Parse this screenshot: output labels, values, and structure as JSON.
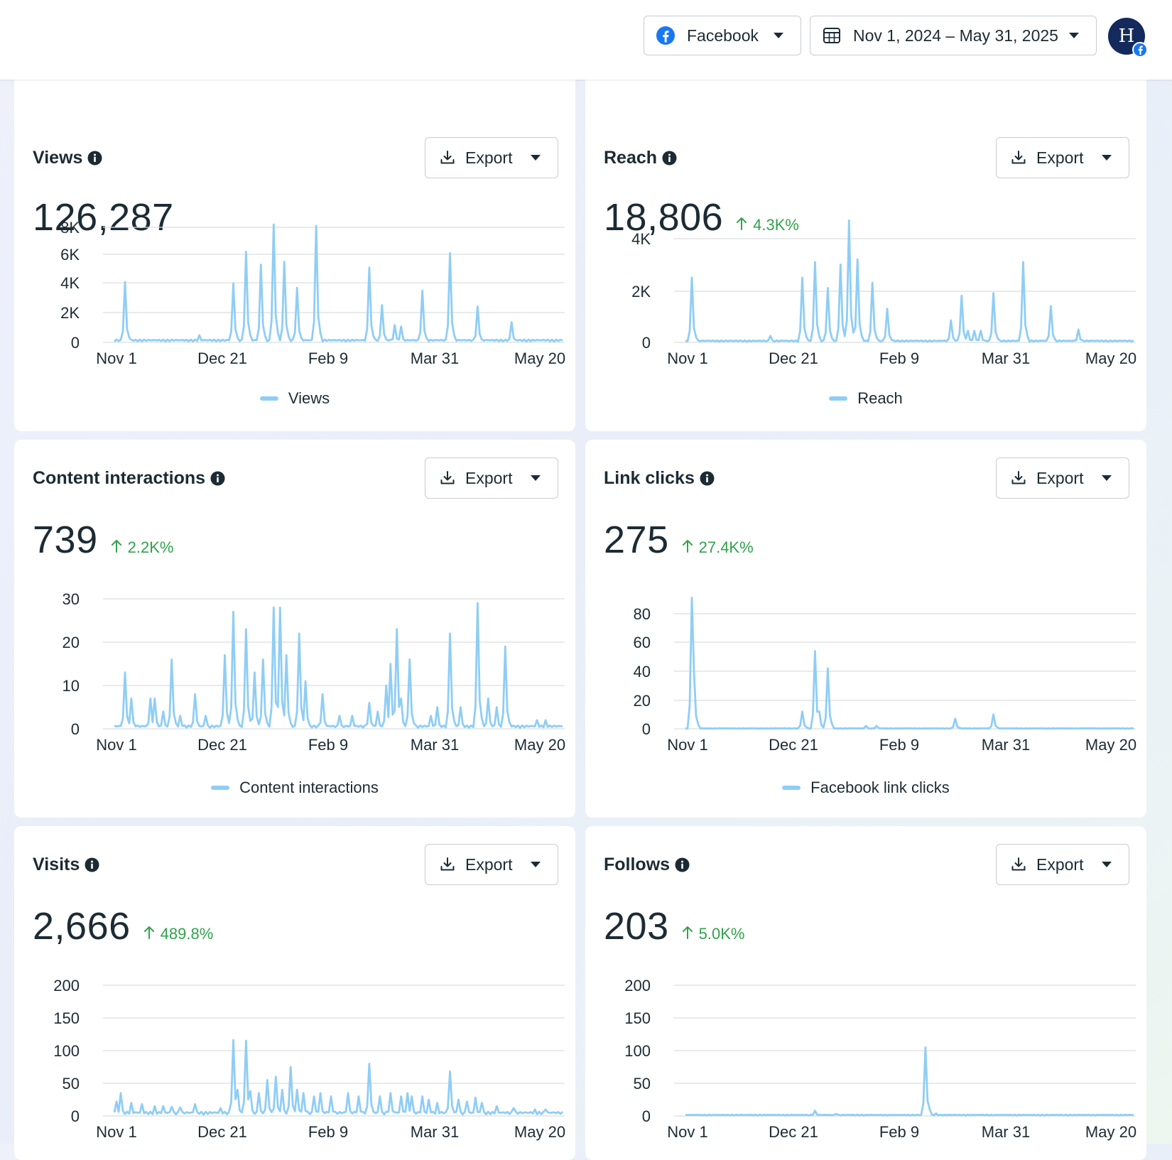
{
  "header": {
    "platform_label": "Facebook",
    "date_range": "Nov 1, 2024 – May 31, 2025",
    "avatar_initial": "H"
  },
  "colors": {
    "line": "#8fcdf5",
    "grid": "#dadde1",
    "positive": "#31a24c",
    "brand": "#1877f2"
  },
  "cards": [
    {
      "title": "Views",
      "export_label": "Export",
      "value": "126,287",
      "change": "",
      "legend": "Views",
      "chart_data": {
        "type": "line",
        "x_ticks": [
          "Nov 1",
          "Dec 21",
          "Feb 9",
          "Mar 31",
          "May 20"
        ],
        "y_ticks": [
          "8K",
          "6K",
          "4K",
          "2K",
          "0"
        ],
        "ylim": [
          0,
          8000
        ],
        "peaks": [
          [
            5,
            4200
          ],
          [
            40,
            500
          ],
          [
            56,
            4100
          ],
          [
            62,
            6300
          ],
          [
            69,
            5400
          ],
          [
            75,
            8200
          ],
          [
            80,
            5600
          ],
          [
            86,
            3800
          ],
          [
            95,
            8100
          ],
          [
            120,
            5200
          ],
          [
            126,
            2600
          ],
          [
            132,
            1200
          ],
          [
            135,
            1100
          ],
          [
            145,
            3600
          ],
          [
            158,
            6200
          ],
          [
            171,
            2500
          ],
          [
            187,
            1400
          ]
        ],
        "baseline": 150
      }
    },
    {
      "title": "Reach",
      "export_label": "Export",
      "value": "18,806",
      "change": "4.3K%",
      "legend": "Reach",
      "chart_data": {
        "type": "line",
        "x_ticks": [
          "Nov 1",
          "Dec 21",
          "Feb 9",
          "Mar 31",
          "May 20"
        ],
        "y_ticks": [
          "4K",
          "2K",
          "0"
        ],
        "ylim": [
          0,
          4600
        ],
        "peaks": [
          [
            3,
            2500
          ],
          [
            40,
            250
          ],
          [
            55,
            2500
          ],
          [
            61,
            3100
          ],
          [
            67,
            2100
          ],
          [
            73,
            3000
          ],
          [
            77,
            4700
          ],
          [
            81,
            3200
          ],
          [
            88,
            2300
          ],
          [
            95,
            1300
          ],
          [
            125,
            850
          ],
          [
            130,
            1800
          ],
          [
            133,
            450
          ],
          [
            136,
            450
          ],
          [
            139,
            450
          ],
          [
            145,
            1900
          ],
          [
            159,
            3100
          ],
          [
            172,
            1400
          ],
          [
            185,
            500
          ]
        ],
        "baseline": 60
      }
    },
    {
      "title": "Content interactions",
      "export_label": "Export",
      "value": "739",
      "change": "2.2K%",
      "legend": "Content interactions",
      "chart_data": {
        "type": "line",
        "x_ticks": [
          "Nov 1",
          "Dec 21",
          "Feb 9",
          "Mar 31",
          "May 20"
        ],
        "y_ticks": [
          "30",
          "20",
          "10",
          "0"
        ],
        "ylim": [
          0,
          30
        ],
        "peaks": [
          [
            5,
            13
          ],
          [
            8,
            7
          ],
          [
            17,
            7
          ],
          [
            19,
            7
          ],
          [
            23,
            4
          ],
          [
            27,
            16
          ],
          [
            31,
            3
          ],
          [
            38,
            8
          ],
          [
            43,
            3
          ],
          [
            52,
            17
          ],
          [
            56,
            27
          ],
          [
            62,
            23
          ],
          [
            66,
            13
          ],
          [
            70,
            16
          ],
          [
            75,
            28
          ],
          [
            78,
            28
          ],
          [
            81,
            17
          ],
          [
            87,
            22
          ],
          [
            90,
            11
          ],
          [
            98,
            8
          ],
          [
            106,
            3
          ],
          [
            112,
            3
          ],
          [
            120,
            6
          ],
          [
            124,
            4
          ],
          [
            128,
            10
          ],
          [
            130,
            15
          ],
          [
            133,
            23
          ],
          [
            135,
            7
          ],
          [
            139,
            16
          ],
          [
            149,
            3
          ],
          [
            152,
            5
          ],
          [
            158,
            22
          ],
          [
            163,
            5
          ],
          [
            171,
            29
          ],
          [
            176,
            7
          ],
          [
            180,
            5
          ],
          [
            184,
            19
          ],
          [
            199,
            2
          ],
          [
            203,
            2
          ]
        ],
        "baseline": 0.6
      }
    },
    {
      "title": "Link clicks",
      "export_label": "Export",
      "value": "275",
      "change": "27.4K%",
      "legend": "Facebook link clicks",
      "chart_data": {
        "type": "line",
        "x_ticks": [
          "Nov 1",
          "Dec 21",
          "Feb 9",
          "Mar 31",
          "May 20"
        ],
        "y_ticks": [
          "80",
          "60",
          "40",
          "20",
          "0"
        ],
        "ylim": [
          0,
          90
        ],
        "peaks": [
          [
            3,
            91
          ],
          [
            4,
            40
          ],
          [
            55,
            12
          ],
          [
            61,
            54
          ],
          [
            63,
            12
          ],
          [
            67,
            42
          ],
          [
            85,
            2
          ],
          [
            90,
            2
          ],
          [
            127,
            7
          ],
          [
            145,
            10
          ]
        ],
        "baseline": 0.3
      }
    },
    {
      "title": "Visits",
      "export_label": "Export",
      "value": "2,666",
      "change": "489.8%",
      "legend": "Visits",
      "chart_data": {
        "type": "line",
        "x_ticks": [
          "Nov 1",
          "Dec 21",
          "Feb 9",
          "Mar 31",
          "May 20"
        ],
        "y_ticks": [
          "200",
          "150",
          "100",
          "50",
          "0"
        ],
        "ylim": [
          0,
          200
        ],
        "peaks": [
          [
            1,
            22
          ],
          [
            3,
            35
          ],
          [
            8,
            20
          ],
          [
            13,
            18
          ],
          [
            19,
            15
          ],
          [
            23,
            15
          ],
          [
            27,
            14
          ],
          [
            31,
            13
          ],
          [
            38,
            18
          ],
          [
            50,
            12
          ],
          [
            56,
            116
          ],
          [
            58,
            40
          ],
          [
            62,
            115
          ],
          [
            64,
            38
          ],
          [
            68,
            35
          ],
          [
            72,
            55
          ],
          [
            76,
            60
          ],
          [
            79,
            40
          ],
          [
            83,
            75
          ],
          [
            86,
            40
          ],
          [
            89,
            35
          ],
          [
            94,
            30
          ],
          [
            97,
            35
          ],
          [
            102,
            30
          ],
          [
            110,
            35
          ],
          [
            115,
            30
          ],
          [
            120,
            80
          ],
          [
            125,
            30
          ],
          [
            130,
            35
          ],
          [
            135,
            30
          ],
          [
            138,
            35
          ],
          [
            140,
            30
          ],
          [
            145,
            30
          ],
          [
            148,
            25
          ],
          [
            152,
            20
          ],
          [
            158,
            68
          ],
          [
            162,
            25
          ],
          [
            166,
            22
          ],
          [
            170,
            28
          ],
          [
            173,
            20
          ],
          [
            180,
            15
          ],
          [
            188,
            12
          ],
          [
            198,
            10
          ],
          [
            203,
            10
          ]
        ],
        "baseline": 5
      }
    },
    {
      "title": "Follows",
      "export_label": "Export",
      "value": "203",
      "change": "5.0K%",
      "legend": "",
      "chart_data": {
        "type": "line",
        "x_ticks": [
          "Nov 1",
          "Dec 21",
          "Feb 9",
          "Mar 31",
          "May 20"
        ],
        "y_ticks": [
          "200",
          "150",
          "100",
          "50",
          "0"
        ],
        "ylim": [
          0,
          200
        ],
        "peaks": [
          [
            61,
            8
          ],
          [
            71,
            3
          ],
          [
            113,
            105
          ],
          [
            115,
            10
          ],
          [
            118,
            4
          ]
        ],
        "baseline": 1.5
      }
    }
  ]
}
